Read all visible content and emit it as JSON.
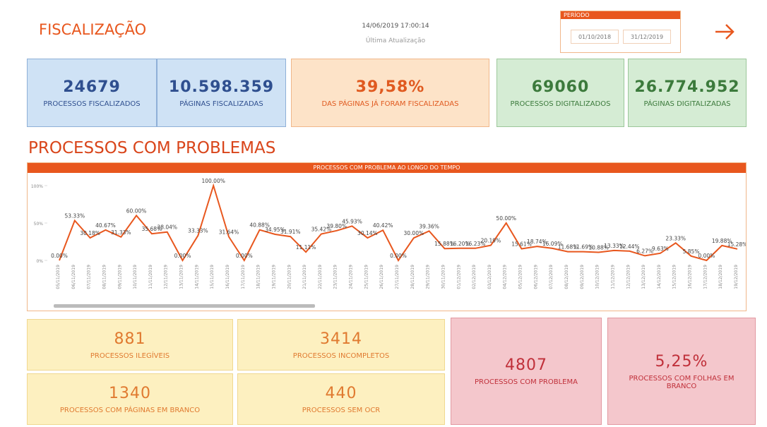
{
  "header": {
    "title": "FISCALIZAÇÃO",
    "updated": "14/06/2019 17:00:14",
    "updated_label": "Última Atualização",
    "period_label": "PERÍODO",
    "period_start": "01/10/2018",
    "period_end": "31/12/2019"
  },
  "kpis": [
    {
      "value": "24679",
      "label": "PROCESSOS FISCALIZADOS"
    },
    {
      "value": "10.598.359",
      "label": "PÁGINAS FISCALIZADAS"
    },
    {
      "value": "39,58%",
      "label": "DAS PÁGINAS JÁ FORAM FISCALIZADAS"
    },
    {
      "value": "69060",
      "label": "PROCESSOS DIGITALIZADOS"
    },
    {
      "value": "26.774.952",
      "label": "PÁGINAS DIGITALIZADAS"
    }
  ],
  "section_title": "PROCESSOS COM PROBLEMAS",
  "chart": {
    "type": "line",
    "title": "PROCESSOS COM PROBLEMA AO LONGO DO TEMPO",
    "color": "#e8571e",
    "categories": [
      "05/11/2019",
      "06/11/2019",
      "07/11/2019",
      "08/11/2019",
      "09/11/2019",
      "10/11/2019",
      "11/11/2019",
      "12/11/2019",
      "13/11/2019",
      "14/11/2019",
      "15/11/2019",
      "16/11/2019",
      "17/11/2019",
      "18/11/2019",
      "19/11/2019",
      "20/11/2019",
      "21/11/2019",
      "22/11/2019",
      "23/11/2019",
      "24/11/2019",
      "25/11/2019",
      "26/11/2019",
      "27/11/2019",
      "28/11/2019",
      "29/11/2019",
      "30/11/2019",
      "01/12/2019",
      "02/12/2019",
      "03/12/2019",
      "04/12/2019",
      "05/12/2019",
      "06/12/2019",
      "07/12/2019",
      "08/12/2019",
      "09/12/2019",
      "10/12/2019",
      "11/12/2019",
      "12/12/2019",
      "13/12/2019",
      "14/12/2019",
      "15/12/2019",
      "16/12/2019",
      "17/12/2019",
      "18/12/2019",
      "19/12/2019"
    ],
    "values": [
      0,
      53.33,
      30.18,
      40.67,
      31.33,
      60,
      35.68,
      38.04,
      0,
      33.33,
      100,
      31.64,
      0,
      40.88,
      34.95,
      31.91,
      11.11,
      35.42,
      39.8,
      45.93,
      30.14,
      40.42,
      0,
      30,
      39.36,
      15.88,
      16.2,
      16.23,
      20.19,
      50,
      15.61,
      18.74,
      16.09,
      11.68,
      11.69,
      10.88,
      13.33,
      12.44,
      6.27,
      9.63,
      23.33,
      5.85,
      0,
      19.88,
      15.28
    ],
    "value_labels": [
      "0.00%",
      "53.33%",
      "30.18%",
      "40.67%",
      "31.33%",
      "60.00%",
      "35.68%",
      "38.04%",
      "0.00%",
      "33.33%",
      "100.00%",
      "31.64%",
      "0.00%",
      "40.88%",
      "34.95%",
      "31.91%",
      "11.11%",
      "35.42%",
      "39.80%",
      "45.93%",
      "30.14%",
      "40.42%",
      "0.00%",
      "30.00%",
      "39.36%",
      "15.88%",
      "16.20%",
      "16.23%",
      "20.19%",
      "50.00%",
      "15.61%",
      "18.74%",
      "16.09%",
      "11.68%",
      "11.69%",
      "10.88%",
      "13.33%",
      "12.44%",
      "6.27%",
      "9.63%",
      "23.33%",
      "5.85%",
      "0.00%",
      "19.88%",
      "15.28%"
    ],
    "ylim": [
      0,
      100
    ],
    "yticks": [
      {
        "value": 0,
        "label": "0%"
      },
      {
        "value": 50,
        "label": "50%"
      },
      {
        "value": 100,
        "label": "100%"
      }
    ]
  },
  "problems": [
    {
      "value": "881",
      "label": "PROCESSOS ILEGÍVEIS"
    },
    {
      "value": "3414",
      "label": "PROCESSOS INCOMPLETOS"
    },
    {
      "value": "1340",
      "label": "PROCESSOS COM PÁGINAS EM BRANCO"
    },
    {
      "value": "440",
      "label": "PROCESSOS SEM OCR"
    },
    {
      "value": "4807",
      "label": "PROCESSOS COM PROBLEMA"
    },
    {
      "value": "5,25%",
      "label": "PROCESSOS COM FOLHAS EM BRANCO"
    }
  ]
}
